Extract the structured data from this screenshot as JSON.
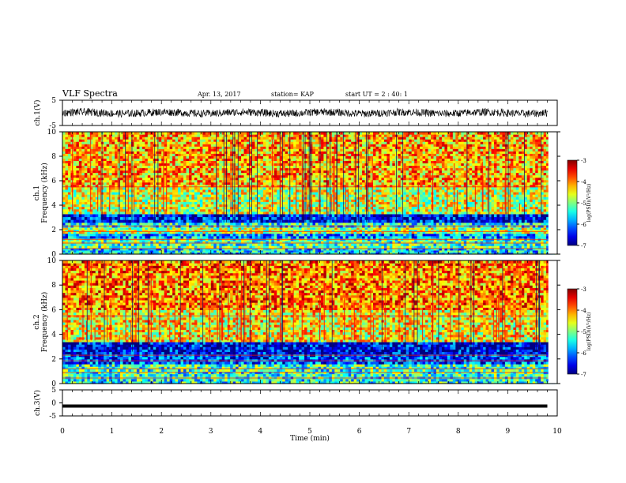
{
  "header": {
    "title": "VLF Spectra",
    "date": "Apr. 13, 2017",
    "station": "station= KAP",
    "start": "start UT =  2 : 40: 1"
  },
  "chart_data": [
    {
      "type": "line",
      "name": "ch1-waveform",
      "ylabel": "ch.1(V)",
      "ylim": [
        -5,
        5
      ],
      "xlim": [
        0,
        10
      ],
      "yticks": [
        "5",
        "-5"
      ],
      "trace_band": [
        -1.5,
        1.5
      ],
      "description_values": {
        "x_end": 9.8
      }
    },
    {
      "type": "heatmap",
      "name": "ch1-spectrogram",
      "ylabel_line1": "ch.1",
      "ylabel_line2": "Frequency (kHz)",
      "xlim": [
        0,
        10
      ],
      "ylim": [
        0,
        10
      ],
      "yticks": [
        "0",
        "2",
        "4",
        "6",
        "8",
        "10"
      ],
      "colorbar": {
        "label": "log(PSD)(V²/Hz)",
        "range": [
          -7,
          -3
        ],
        "ticks": [
          "-3",
          "-4",
          "-5",
          "-6",
          "-7"
        ]
      },
      "bands": [
        {
          "f": [
            0,
            0.5
          ],
          "level": -5.6
        },
        {
          "f": [
            0.5,
            1.3
          ],
          "level": -5.2
        },
        {
          "f": [
            1.3,
            1.7
          ],
          "level": -5.9
        },
        {
          "f": [
            1.7,
            2.2
          ],
          "level": -4.8
        },
        {
          "f": [
            2.2,
            2.6
          ],
          "level": -5.5
        },
        {
          "f": [
            2.6,
            3.3
          ],
          "level": -6.5
        },
        {
          "f": [
            3.3,
            5.5
          ],
          "level": -4.7
        },
        {
          "f": [
            5.5,
            10
          ],
          "level": -4.2
        }
      ]
    },
    {
      "type": "heatmap",
      "name": "ch2-spectrogram",
      "ylabel_line1": "ch.2",
      "ylabel_line2": "Frequency (kHz)",
      "xlim": [
        0,
        10
      ],
      "ylim": [
        0,
        10
      ],
      "yticks": [
        "0",
        "2",
        "4",
        "6",
        "8",
        "10"
      ],
      "colorbar": {
        "label": "log(PSD)(V²/Hz)",
        "range": [
          -7,
          -3
        ],
        "ticks": [
          "-3",
          "-4",
          "-5",
          "-6",
          "-7"
        ]
      },
      "bands": [
        {
          "f": [
            0,
            0.6
          ],
          "level": -5.4
        },
        {
          "f": [
            0.6,
            1.6
          ],
          "level": -5.3
        },
        {
          "f": [
            1.6,
            2.4
          ],
          "level": -6.2
        },
        {
          "f": [
            2.4,
            3.4
          ],
          "level": -6.6
        },
        {
          "f": [
            3.4,
            6
          ],
          "level": -4.5
        },
        {
          "f": [
            6,
            10
          ],
          "level": -4.0
        }
      ]
    },
    {
      "type": "line",
      "name": "ch3-waveform",
      "ylabel": "ch.3(V)",
      "ylim": [
        -5,
        5
      ],
      "xlim": [
        0,
        10
      ],
      "yticks": [
        "5",
        "0",
        "-5"
      ],
      "values": [
        [
          0,
          -1.2
        ],
        [
          9.8,
          -1.2
        ]
      ]
    }
  ],
  "xaxis": {
    "label": "Time (min)",
    "ticks": [
      "0",
      "1",
      "2",
      "3",
      "4",
      "5",
      "6",
      "7",
      "8",
      "9",
      "10"
    ]
  }
}
